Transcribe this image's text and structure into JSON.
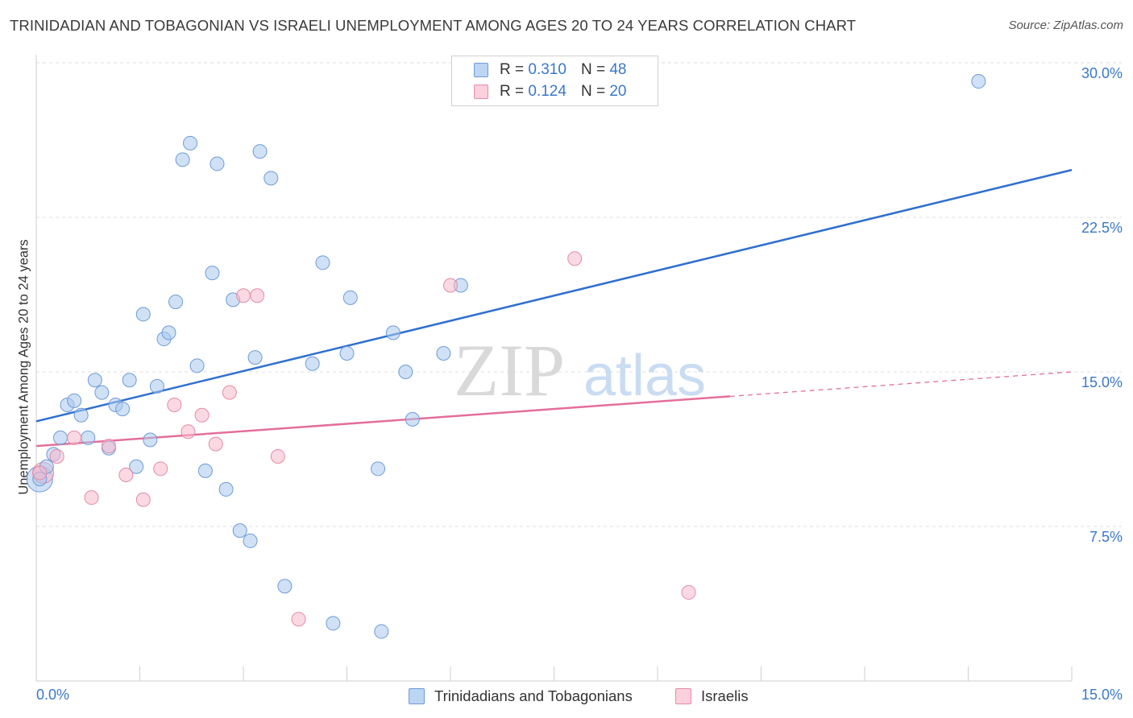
{
  "title": "TRINIDADIAN AND TOBAGONIAN VS ISRAELI UNEMPLOYMENT AMONG AGES 20 TO 24 YEARS CORRELATION CHART",
  "source": "Source: ZipAtlas.com",
  "watermark": {
    "zip": "ZIP",
    "atlas": "atlas"
  },
  "colors": {
    "blue_fill": "#a9c8ef",
    "blue_stroke": "#6d9bd8",
    "blue_line": "#2f6fd0",
    "pink_fill": "#f7b9cc",
    "pink_stroke": "#e58aa8",
    "pink_line": "#e36f9a",
    "axis_text": "#3a78c9",
    "grid": "#dddddd"
  },
  "legend": {
    "rows": [
      {
        "r_label": "R =",
        "r_value": "0.310",
        "n_label": "N =",
        "n_value": "48"
      },
      {
        "r_label": "R =",
        "r_value": "0.124",
        "n_label": "N =",
        "n_value": "20"
      }
    ]
  },
  "bottom_legend": {
    "series1": "Trinidadians and Tobagonians",
    "series2": "Israelis"
  },
  "chart_data": {
    "type": "scatter",
    "title": "TRINIDADIAN AND TOBAGONIAN VS ISRAELI UNEMPLOYMENT AMONG AGES 20 TO 24 YEARS CORRELATION CHART",
    "xlabel": "",
    "ylabel": "Unemployment Among Ages 20 to 24 years",
    "xlim": [
      0,
      15
    ],
    "ylim": [
      0,
      30
    ],
    "x_tick_labels": [
      "0.0%",
      "15.0%"
    ],
    "y_ticks": [
      7.5,
      15.0,
      22.5,
      30.0
    ],
    "y_tick_labels": [
      "7.5%",
      "15.0%",
      "22.5%",
      "30.0%"
    ],
    "grid": true,
    "legend_position": "top-center",
    "series": [
      {
        "name": "Trinidadians and Tobagonians",
        "color": "blue",
        "points": [
          [
            0.05,
            9.8
          ],
          [
            0.15,
            10.4
          ],
          [
            0.25,
            11.0
          ],
          [
            0.35,
            11.8
          ],
          [
            0.45,
            13.4
          ],
          [
            0.55,
            13.6
          ],
          [
            0.65,
            12.9
          ],
          [
            0.75,
            11.8
          ],
          [
            0.85,
            14.6
          ],
          [
            0.95,
            14.0
          ],
          [
            1.05,
            11.3
          ],
          [
            1.15,
            13.4
          ],
          [
            1.25,
            13.2
          ],
          [
            1.35,
            14.6
          ],
          [
            1.45,
            10.4
          ],
          [
            1.55,
            17.8
          ],
          [
            1.65,
            11.7
          ],
          [
            1.75,
            14.3
          ],
          [
            1.85,
            16.6
          ],
          [
            1.92,
            16.9
          ],
          [
            2.02,
            18.4
          ],
          [
            2.12,
            25.3
          ],
          [
            2.23,
            26.1
          ],
          [
            2.33,
            15.3
          ],
          [
            2.45,
            10.2
          ],
          [
            2.55,
            19.8
          ],
          [
            2.62,
            25.1
          ],
          [
            2.75,
            9.3
          ],
          [
            2.85,
            18.5
          ],
          [
            2.95,
            7.3
          ],
          [
            3.1,
            6.8
          ],
          [
            3.17,
            15.7
          ],
          [
            3.24,
            25.7
          ],
          [
            3.4,
            24.4
          ],
          [
            3.6,
            4.6
          ],
          [
            4.0,
            15.4
          ],
          [
            4.15,
            20.3
          ],
          [
            4.3,
            2.8
          ],
          [
            4.5,
            15.9
          ],
          [
            4.55,
            18.6
          ],
          [
            4.95,
            10.3
          ],
          [
            5.0,
            2.4
          ],
          [
            5.17,
            16.9
          ],
          [
            5.35,
            15.0
          ],
          [
            5.45,
            12.7
          ],
          [
            5.9,
            15.9
          ],
          [
            6.15,
            19.2
          ],
          [
            13.65,
            29.1
          ]
        ],
        "trendline": {
          "x": [
            0,
            15
          ],
          "y": [
            12.6,
            24.8
          ]
        }
      },
      {
        "name": "Israelis",
        "color": "pink",
        "points": [
          [
            0.05,
            10.1
          ],
          [
            0.3,
            10.9
          ],
          [
            0.55,
            11.8
          ],
          [
            0.8,
            8.9
          ],
          [
            1.05,
            11.4
          ],
          [
            1.3,
            10.0
          ],
          [
            1.55,
            8.8
          ],
          [
            1.8,
            10.3
          ],
          [
            2.0,
            13.4
          ],
          [
            2.2,
            12.1
          ],
          [
            2.4,
            12.9
          ],
          [
            2.6,
            11.5
          ],
          [
            2.8,
            14.0
          ],
          [
            3.0,
            18.7
          ],
          [
            3.2,
            18.7
          ],
          [
            3.5,
            10.9
          ],
          [
            3.8,
            3.0
          ],
          [
            6.0,
            19.2
          ],
          [
            7.8,
            20.5
          ],
          [
            9.45,
            4.3
          ]
        ],
        "trendline": {
          "x": [
            0,
            15
          ],
          "y": [
            11.4,
            15.0
          ],
          "solid_until_x": 10.05
        }
      }
    ]
  }
}
